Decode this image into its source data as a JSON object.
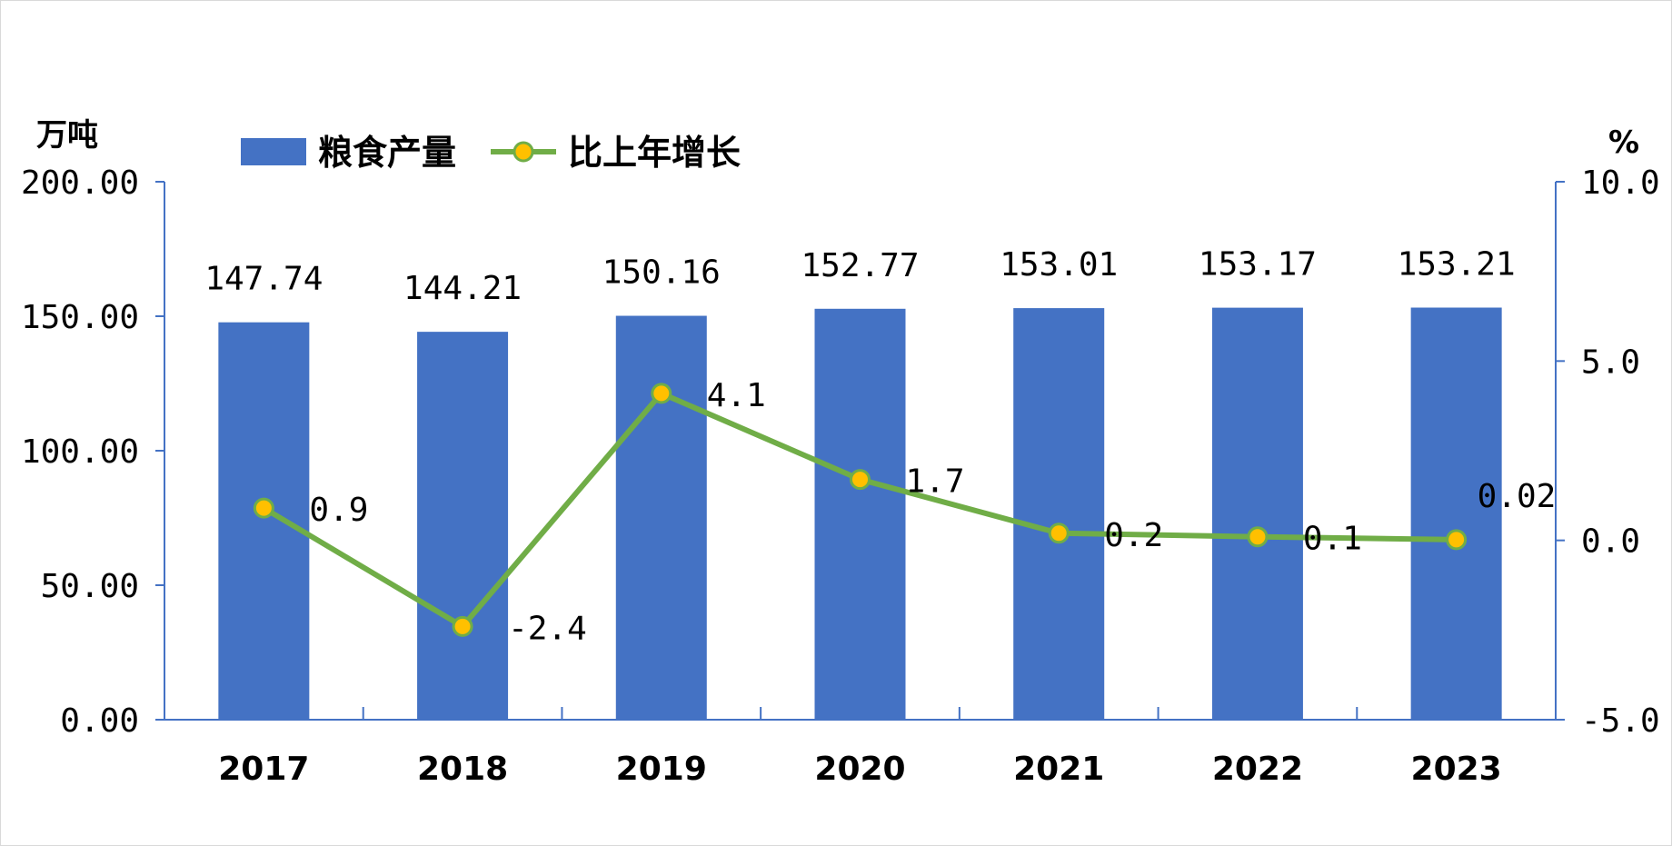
{
  "chart_data": {
    "type": "bar",
    "categories": [
      "2017",
      "2018",
      "2019",
      "2020",
      "2021",
      "2022",
      "2023"
    ],
    "series": [
      {
        "name": "粮食产量",
        "type": "bar",
        "axis": "left",
        "color": "#4472C4",
        "values": [
          147.74,
          144.21,
          150.16,
          152.77,
          153.01,
          153.17,
          153.21
        ],
        "labels": [
          "147.74",
          "144.21",
          "150.16",
          "152.77",
          "153.01",
          "153.17",
          "153.21"
        ]
      },
      {
        "name": "比上年增长",
        "type": "line",
        "axis": "right",
        "color": "#70AD47",
        "marker_color": "#FFC000",
        "values": [
          0.9,
          -2.4,
          4.1,
          1.7,
          0.2,
          0.1,
          0.02
        ],
        "labels": [
          "0.9",
          "-2.4",
          "4.1",
          "1.7",
          "0.2",
          "0.1",
          "0.02"
        ]
      }
    ],
    "left_axis": {
      "unit": "万吨",
      "ylim": [
        0,
        200
      ],
      "ticks": [
        0,
        50,
        100,
        150,
        200
      ],
      "tick_labels": [
        "0.00",
        "50.00",
        "100.00",
        "150.00",
        "200.00"
      ]
    },
    "right_axis": {
      "unit": "%",
      "ylim": [
        -5,
        10
      ],
      "ticks": [
        -5,
        0,
        5,
        10
      ],
      "tick_labels": [
        "-5.0",
        "0.0",
        "5.0",
        "10.0"
      ]
    },
    "axis_color": "#4472C4",
    "grid": false,
    "legend_position": "top"
  }
}
